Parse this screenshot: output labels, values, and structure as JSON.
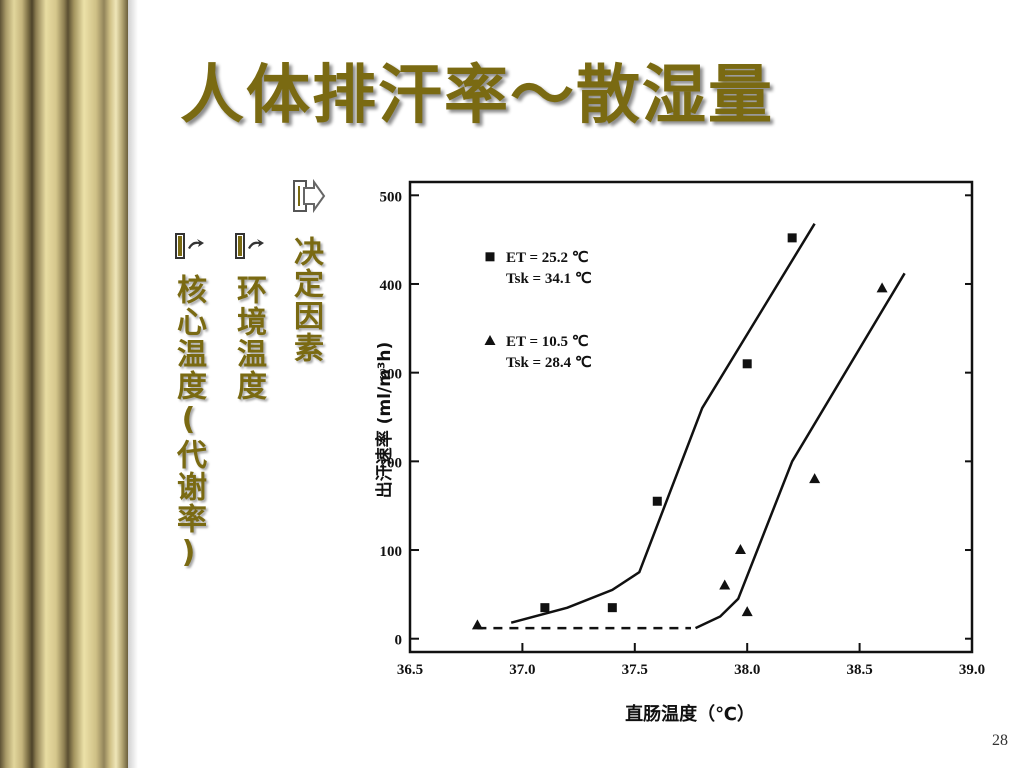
{
  "slide": {
    "title": "人体排汗率～散湿量",
    "page_number": "28",
    "factors": {
      "heading": "决定因素",
      "items": [
        "环境温度",
        "核心温度(代谢率)"
      ]
    }
  },
  "colors": {
    "title": "#7a6a12",
    "pillar": "#c4b47c"
  },
  "chart_data": {
    "type": "scatter",
    "xlabel": "直肠温度（℃）",
    "ylabel": "出汗速率 (ml/m³h)",
    "xlim": [
      36.5,
      39.0
    ],
    "ylim": [
      0,
      500
    ],
    "xticks": [
      "36.5",
      "37.0",
      "37.5",
      "38.0",
      "38.5",
      "39.0"
    ],
    "yticks": [
      "0",
      "100",
      "200",
      "300",
      "400",
      "500"
    ],
    "series": [
      {
        "name": "ET = 25.2 ℃ Tsk = 34.1 ℃",
        "legend_lines": [
          "ET = 25.2 ℃",
          "Tsk = 34.1 ℃"
        ],
        "marker": "square",
        "points": [
          [
            37.1,
            35
          ],
          [
            37.4,
            35
          ],
          [
            37.6,
            155
          ],
          [
            38.0,
            310
          ],
          [
            38.2,
            452
          ]
        ],
        "fit": [
          [
            36.95,
            18
          ],
          [
            37.2,
            35
          ],
          [
            37.4,
            55
          ],
          [
            37.52,
            75
          ],
          [
            37.8,
            260
          ],
          [
            38.3,
            468
          ]
        ]
      },
      {
        "name": "ET = 10.5 ℃ Tsk = 28.4 ℃",
        "legend_lines": [
          "ET = 10.5 ℃",
          "Tsk = 28.4 ℃"
        ],
        "marker": "triangle",
        "points": [
          [
            36.8,
            15
          ],
          [
            37.9,
            60
          ],
          [
            37.97,
            100
          ],
          [
            38.0,
            30
          ],
          [
            38.3,
            180
          ],
          [
            38.6,
            395
          ]
        ],
        "fit": [
          [
            37.77,
            12
          ],
          [
            37.88,
            25
          ],
          [
            37.96,
            45
          ],
          [
            38.2,
            200
          ],
          [
            38.7,
            412
          ]
        ]
      }
    ],
    "baseline": {
      "style": "dashed",
      "points": [
        [
          36.8,
          12
        ],
        [
          37.75,
          12
        ]
      ]
    },
    "grid": false,
    "legend_position": "top-left"
  }
}
